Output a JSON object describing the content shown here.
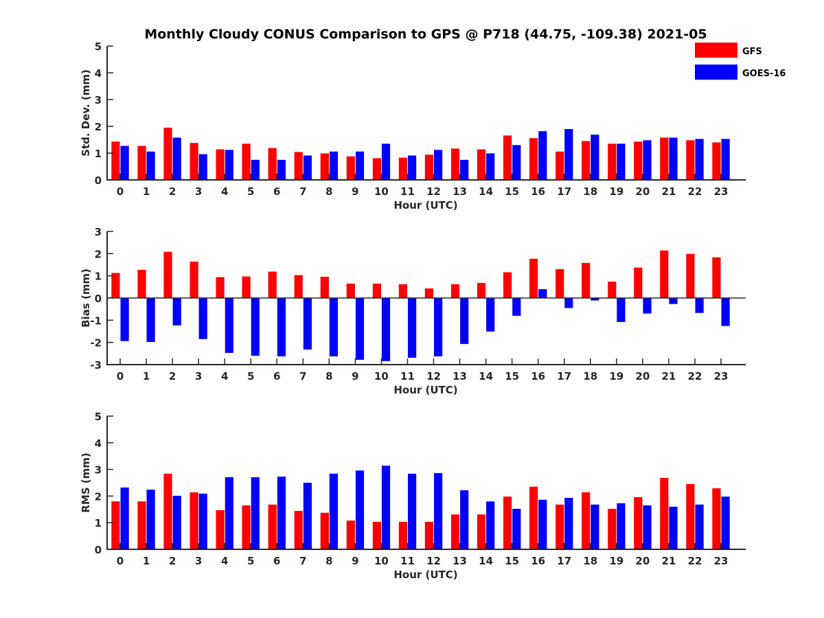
{
  "title": "Monthly Cloudy CONUS Comparison to GPS @ P718 (44.75, -109.38) 2021-05",
  "legend": [
    {
      "name": "GFS",
      "color": "#ff0000"
    },
    {
      "name": "GOES-16",
      "color": "#0000ff"
    }
  ],
  "chart_data": [
    {
      "type": "bar",
      "title": "Monthly Cloudy CONUS Comparison to GPS @ P718 (44.75, -109.38) 2021-05",
      "xlabel": "Hour (UTC)",
      "ylabel": "Std. Dev. (mm)",
      "ylim": [
        0,
        5
      ],
      "yticks": [
        0,
        1,
        2,
        3,
        4,
        5
      ],
      "categories": [
        "0",
        "1",
        "2",
        "3",
        "4",
        "5",
        "6",
        "7",
        "8",
        "9",
        "10",
        "11",
        "12",
        "13",
        "14",
        "15",
        "16",
        "17",
        "18",
        "19",
        "20",
        "21",
        "22",
        "23"
      ],
      "legend_position": "top-right",
      "grid": false,
      "series": [
        {
          "name": "GFS",
          "color": "#ff0000",
          "values": [
            1.43,
            1.27,
            1.95,
            1.38,
            1.14,
            1.35,
            1.19,
            1.04,
            0.99,
            0.88,
            0.81,
            0.83,
            0.94,
            1.17,
            1.14,
            1.66,
            1.56,
            1.06,
            1.45,
            1.35,
            1.43,
            1.58,
            1.48,
            1.4
          ]
        },
        {
          "name": "GOES-16",
          "color": "#0000ff",
          "values": [
            1.27,
            1.06,
            1.58,
            0.96,
            1.12,
            0.75,
            0.75,
            0.91,
            1.06,
            1.06,
            1.35,
            0.91,
            1.12,
            0.75,
            0.99,
            1.3,
            1.82,
            1.9,
            1.69,
            1.35,
            1.48,
            1.58,
            1.53,
            1.53
          ]
        }
      ]
    },
    {
      "type": "bar",
      "title": "",
      "xlabel": "Hour (UTC)",
      "ylabel": "Bias (mm)",
      "ylim": [
        -3,
        3
      ],
      "yticks": [
        -3,
        -2,
        -1,
        0,
        1,
        2,
        3
      ],
      "categories": [
        "0",
        "1",
        "2",
        "3",
        "4",
        "5",
        "6",
        "7",
        "8",
        "9",
        "10",
        "11",
        "12",
        "13",
        "14",
        "15",
        "16",
        "17",
        "18",
        "19",
        "20",
        "21",
        "22",
        "23"
      ],
      "grid": false,
      "zero_line": true,
      "series": [
        {
          "name": "GFS",
          "color": "#ff0000",
          "values": [
            1.13,
            1.27,
            2.08,
            1.64,
            0.94,
            0.97,
            1.19,
            1.03,
            0.96,
            0.65,
            0.65,
            0.62,
            0.43,
            0.62,
            0.68,
            1.16,
            1.77,
            1.3,
            1.58,
            0.74,
            1.37,
            2.14,
            1.99,
            1.83
          ]
        },
        {
          "name": "GOES-16",
          "color": "#0000ff",
          "values": [
            -1.94,
            -1.98,
            -1.23,
            -1.85,
            -2.47,
            -2.6,
            -2.63,
            -2.32,
            -2.63,
            -2.78,
            -2.84,
            -2.69,
            -2.63,
            -2.07,
            -1.51,
            -0.8,
            0.4,
            -0.45,
            -0.11,
            -1.08,
            -0.7,
            -0.27,
            -0.67,
            -1.26
          ]
        }
      ]
    },
    {
      "type": "bar",
      "title": "",
      "xlabel": "Hour (UTC)",
      "ylabel": "RMS (mm)",
      "ylim": [
        0,
        5
      ],
      "yticks": [
        0,
        1,
        2,
        3,
        4,
        5
      ],
      "categories": [
        "0",
        "1",
        "2",
        "3",
        "4",
        "5",
        "6",
        "7",
        "8",
        "9",
        "10",
        "11",
        "12",
        "13",
        "14",
        "15",
        "16",
        "17",
        "18",
        "19",
        "20",
        "21",
        "22",
        "23"
      ],
      "grid": false,
      "series": [
        {
          "name": "GFS",
          "color": "#ff0000",
          "values": [
            1.8,
            1.8,
            2.84,
            2.14,
            1.47,
            1.65,
            1.68,
            1.44,
            1.37,
            1.08,
            1.03,
            1.03,
            1.03,
            1.31,
            1.31,
            1.98,
            2.35,
            1.68,
            2.14,
            1.52,
            1.96,
            2.68,
            2.45,
            2.29
          ]
        },
        {
          "name": "GOES-16",
          "color": "#0000ff",
          "values": [
            2.32,
            2.24,
            2.01,
            2.09,
            2.71,
            2.71,
            2.73,
            2.5,
            2.84,
            2.96,
            3.14,
            2.84,
            2.86,
            2.22,
            1.8,
            1.52,
            1.86,
            1.93,
            1.68,
            1.73,
            1.65,
            1.6,
            1.68,
            1.98
          ]
        }
      ]
    }
  ]
}
